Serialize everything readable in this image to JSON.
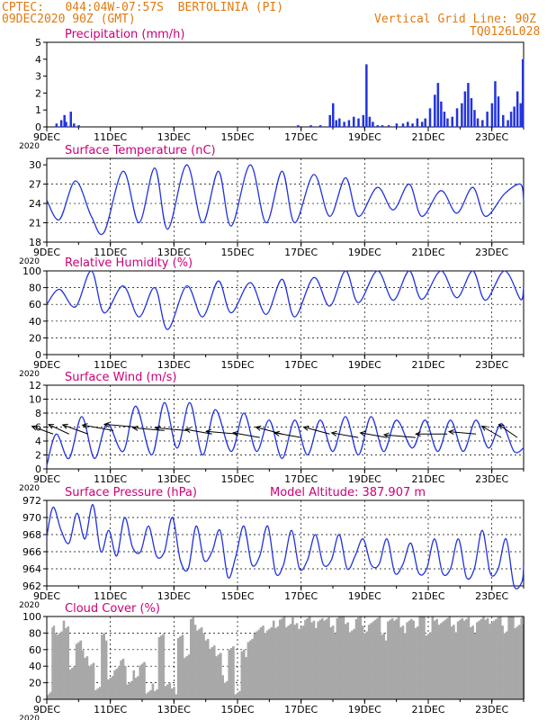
{
  "header": {
    "line1": "CPTEC:   044:04W-07:57S  BERTOLINIA (PI)",
    "line2": "09DEC2020 90Z (GMT)",
    "grid_note": "Vertical Grid Line: 90Z",
    "code": "TQ0126L028"
  },
  "colors": {
    "header": "#e07a10",
    "title": "#cc0077",
    "series": "#2233dd",
    "wind_arrow": "#000000",
    "cloud": "#a8a8a8",
    "axis": "#000000"
  },
  "x_axis": {
    "start_day": 9,
    "end_day": 24,
    "tick_labels": [
      "9DEC",
      "11DEC",
      "13DEC",
      "15DEC",
      "17DEC",
      "19DEC",
      "21DEC",
      "23DEC"
    ],
    "tick_days": [
      9,
      11,
      13,
      15,
      17,
      19,
      21,
      23
    ],
    "year_label": "2020"
  },
  "chart_data": [
    {
      "type": "bar",
      "title": "Precipitation (mm/h)",
      "ylim": [
        0,
        5
      ],
      "yticks": [
        "0",
        "1",
        "2",
        "3",
        "4",
        "5"
      ],
      "grid": false,
      "bars": [
        [
          9.3,
          0.2
        ],
        [
          9.45,
          0.4
        ],
        [
          9.55,
          0.7
        ],
        [
          9.6,
          0.3
        ],
        [
          9.75,
          0.9
        ],
        [
          9.85,
          0.2
        ],
        [
          10.0,
          0.1
        ],
        [
          16.9,
          0.1
        ],
        [
          17.3,
          0.1
        ],
        [
          17.6,
          0.1
        ],
        [
          17.9,
          0.7
        ],
        [
          18.0,
          1.4
        ],
        [
          18.1,
          0.4
        ],
        [
          18.2,
          0.5
        ],
        [
          18.35,
          0.3
        ],
        [
          18.5,
          0.4
        ],
        [
          18.65,
          0.6
        ],
        [
          18.8,
          0.5
        ],
        [
          18.95,
          0.7
        ],
        [
          19.05,
          3.7
        ],
        [
          19.15,
          0.6
        ],
        [
          19.25,
          0.3
        ],
        [
          19.4,
          0.1
        ],
        [
          19.55,
          0.1
        ],
        [
          19.75,
          0.1
        ],
        [
          20.0,
          0.2
        ],
        [
          20.2,
          0.2
        ],
        [
          20.35,
          0.3
        ],
        [
          20.5,
          0.2
        ],
        [
          20.65,
          0.5
        ],
        [
          20.8,
          0.3
        ],
        [
          20.9,
          0.5
        ],
        [
          21.05,
          1.1
        ],
        [
          21.2,
          1.9
        ],
        [
          21.3,
          2.6
        ],
        [
          21.4,
          1.5
        ],
        [
          21.5,
          0.9
        ],
        [
          21.6,
          0.5
        ],
        [
          21.75,
          0.6
        ],
        [
          21.9,
          1.1
        ],
        [
          22.05,
          1.4
        ],
        [
          22.15,
          2.1
        ],
        [
          22.25,
          2.6
        ],
        [
          22.35,
          1.7
        ],
        [
          22.45,
          1.0
        ],
        [
          22.55,
          0.5
        ],
        [
          22.7,
          0.4
        ],
        [
          22.85,
          0.9
        ],
        [
          23.0,
          1.4
        ],
        [
          23.1,
          2.7
        ],
        [
          23.2,
          1.8
        ],
        [
          23.35,
          0.7
        ],
        [
          23.5,
          0.4
        ],
        [
          23.6,
          0.9
        ],
        [
          23.7,
          1.2
        ],
        [
          23.8,
          2.1
        ],
        [
          23.9,
          1.4
        ],
        [
          23.97,
          4.0
        ]
      ]
    },
    {
      "type": "line",
      "title": "Surface Temperature (nC)",
      "ylim": [
        18,
        31
      ],
      "ytick_values": [
        18,
        21,
        24,
        27,
        30
      ],
      "ytick_labels": [
        "18",
        "21",
        "24",
        "27",
        "30"
      ],
      "grid": true,
      "x": [
        9.0,
        9.4,
        9.9,
        10.4,
        10.8,
        11.4,
        11.9,
        12.4,
        12.8,
        13.4,
        13.9,
        14.4,
        14.8,
        15.4,
        15.9,
        16.4,
        16.8,
        17.4,
        17.9,
        18.4,
        18.8,
        19.4,
        19.9,
        20.4,
        20.8,
        21.4,
        21.9,
        22.4,
        22.8,
        23.4,
        23.9,
        24.0
      ],
      "y": [
        24.5,
        21.5,
        27.5,
        22,
        19.5,
        29,
        21,
        29.5,
        20,
        30,
        21,
        29,
        20.5,
        30,
        21,
        29,
        21,
        28.5,
        22,
        28,
        22,
        26.5,
        23,
        27,
        22,
        26,
        22.5,
        26.5,
        22,
        25.5,
        27,
        24.5
      ]
    },
    {
      "type": "line",
      "title": "Relative Humidity (%)",
      "ylim": [
        0,
        100
      ],
      "ytick_values": [
        0,
        20,
        40,
        60,
        80,
        100
      ],
      "ytick_labels": [
        "0",
        "20",
        "40",
        "60",
        "80",
        "100"
      ],
      "grid": true,
      "x": [
        9.0,
        9.4,
        9.9,
        10.4,
        10.8,
        11.4,
        11.9,
        12.4,
        12.8,
        13.4,
        13.9,
        14.4,
        14.8,
        15.4,
        15.9,
        16.4,
        16.8,
        17.4,
        17.9,
        18.4,
        18.8,
        19.4,
        19.9,
        20.4,
        20.8,
        21.4,
        21.9,
        22.4,
        22.8,
        23.4,
        23.9,
        24.0
      ],
      "y": [
        60,
        78,
        57,
        100,
        50,
        82,
        45,
        80,
        30,
        82,
        45,
        88,
        50,
        86,
        48,
        90,
        45,
        92,
        58,
        100,
        62,
        100,
        65,
        100,
        66,
        100,
        68,
        100,
        65,
        100,
        66,
        80
      ]
    },
    {
      "type": "line",
      "title": "Surface Wind (m/s)",
      "ylim": [
        0,
        12
      ],
      "ytick_values": [
        0,
        2,
        4,
        6,
        8,
        10,
        12
      ],
      "ytick_labels": [
        "0",
        "2",
        "4",
        "6",
        "8",
        "10",
        "12"
      ],
      "grid": true,
      "x": [
        9.0,
        9.3,
        9.7,
        10.1,
        10.5,
        10.9,
        11.4,
        11.8,
        12.3,
        12.7,
        13.1,
        13.5,
        13.9,
        14.3,
        14.8,
        15.2,
        15.6,
        16.0,
        16.4,
        16.8,
        17.2,
        17.6,
        18.0,
        18.4,
        18.8,
        19.2,
        19.6,
        20.0,
        20.5,
        20.9,
        21.3,
        21.7,
        22.1,
        22.5,
        22.9,
        23.3,
        23.7,
        24.0
      ],
      "y": [
        0.5,
        5,
        1.5,
        7.5,
        1.5,
        6.5,
        2.5,
        9,
        2,
        9.5,
        3,
        9.5,
        2,
        8.5,
        2.5,
        8,
        2.5,
        7,
        1.5,
        7,
        2,
        7,
        2.5,
        7.5,
        2,
        7.5,
        2.5,
        7,
        3,
        7,
        2.5,
        7,
        2.5,
        7,
        3,
        6.5,
        2.5,
        3
      ],
      "arrows": {
        "days": [
          9.2,
          9.7,
          10.3,
          11.1,
          11.8,
          12.7,
          13.4,
          14.2,
          15.0,
          15.7,
          16.4,
          17.0,
          17.9,
          18.8,
          19.7,
          20.6,
          21.6,
          22.5,
          23.3,
          23.8
        ],
        "len_ms": [
          5,
          5,
          6,
          7,
          7,
          7,
          7,
          6,
          7,
          6,
          6,
          6,
          6,
          6,
          6,
          7,
          7,
          6,
          5,
          5
        ],
        "from_deg": [
          110,
          115,
          110,
          100,
          95,
          95,
          95,
          100,
          95,
          100,
          105,
          100,
          105,
          100,
          100,
          95,
          90,
          95,
          120,
          125
        ],
        "y_ms": [
          5,
          5,
          5,
          5.5,
          6,
          5.5,
          5.5,
          5,
          5,
          4.5,
          5,
          4.5,
          5,
          4.5,
          4.5,
          4.5,
          5,
          5,
          4.5,
          4.5
        ]
      }
    },
    {
      "type": "line",
      "title": "Surface Pressure (hPa)",
      "annotation": "Model Altitude: 387.907 m",
      "ylim": [
        962,
        972
      ],
      "ytick_values": [
        962,
        964,
        966,
        968,
        970,
        972
      ],
      "ytick_labels": [
        "962",
        "964",
        "966",
        "968",
        "970",
        "972"
      ],
      "grid": true,
      "x": [
        9.0,
        9.2,
        9.45,
        9.7,
        9.95,
        10.2,
        10.45,
        10.7,
        10.95,
        11.2,
        11.45,
        11.7,
        11.95,
        12.2,
        12.45,
        12.7,
        12.95,
        13.2,
        13.45,
        13.7,
        13.95,
        14.2,
        14.45,
        14.7,
        14.95,
        15.2,
        15.45,
        15.7,
        15.95,
        16.2,
        16.45,
        16.7,
        16.95,
        17.2,
        17.45,
        17.7,
        17.95,
        18.2,
        18.45,
        18.7,
        18.95,
        19.2,
        19.45,
        19.7,
        19.95,
        20.2,
        20.45,
        20.7,
        20.95,
        21.2,
        21.45,
        21.7,
        21.95,
        22.2,
        22.45,
        22.7,
        22.95,
        23.2,
        23.45,
        23.7,
        23.95,
        24.0
      ],
      "y": [
        967.8,
        971.2,
        968.5,
        967,
        970.5,
        967.5,
        971.5,
        966,
        968.5,
        965.5,
        970,
        966.5,
        966,
        969,
        965.5,
        966,
        970,
        965,
        964,
        969,
        965,
        966,
        968.5,
        963,
        965.5,
        969,
        964.5,
        965.5,
        969,
        963.5,
        964.5,
        968.5,
        964,
        965,
        968,
        964.5,
        965,
        968,
        964,
        965.5,
        967.5,
        964.5,
        964.5,
        967.5,
        963.5,
        964.5,
        967,
        963.5,
        964,
        967.5,
        963.5,
        964,
        967.5,
        963,
        964,
        968.5,
        963.5,
        964,
        967.5,
        962,
        962.5,
        964.5
      ]
    },
    {
      "type": "area",
      "title": "Cloud Cover (%)",
      "ylim": [
        0,
        100
      ],
      "ytick_values": [
        0,
        20,
        40,
        60,
        80,
        100
      ],
      "ytick_labels": [
        "0",
        "20",
        "40",
        "60",
        "80",
        "100"
      ],
      "grid": true,
      "x": [
        9.0,
        9.15,
        9.3,
        9.5,
        9.7,
        9.9,
        10.1,
        10.3,
        10.5,
        10.7,
        10.9,
        11.1,
        11.3,
        11.5,
        11.7,
        11.9,
        12.1,
        12.3,
        12.5,
        12.7,
        12.9,
        13.1,
        13.3,
        13.5,
        13.7,
        13.9,
        14.1,
        14.3,
        14.5,
        14.7,
        14.9,
        15.1,
        15.3,
        15.5,
        15.7,
        15.9,
        16.1,
        16.3,
        16.5,
        16.7,
        16.9,
        17.1,
        17.3,
        17.5,
        17.7,
        17.9,
        18.1,
        18.3,
        18.5,
        18.7,
        18.9,
        19.1,
        19.3,
        19.5,
        19.7,
        19.9,
        20.1,
        20.3,
        20.5,
        20.7,
        20.9,
        21.1,
        21.3,
        21.5,
        21.7,
        21.9,
        22.1,
        22.3,
        22.5,
        22.7,
        22.9,
        23.1,
        23.3,
        23.5,
        23.7,
        23.9,
        24.0
      ],
      "y": [
        10,
        85,
        80,
        90,
        35,
        70,
        55,
        40,
        15,
        75,
        25,
        40,
        45,
        20,
        30,
        40,
        10,
        15,
        75,
        20,
        10,
        75,
        55,
        95,
        85,
        75,
        60,
        55,
        25,
        60,
        10,
        55,
        70,
        85,
        85,
        85,
        90,
        95,
        90,
        95,
        85,
        100,
        90,
        95,
        100,
        85,
        100,
        95,
        80,
        100,
        85,
        90,
        100,
        75,
        95,
        100,
        85,
        95,
        90,
        100,
        80,
        100,
        90,
        100,
        85,
        95,
        100,
        85,
        95,
        100,
        90,
        100,
        85,
        100,
        90,
        95,
        100
      ]
    }
  ]
}
